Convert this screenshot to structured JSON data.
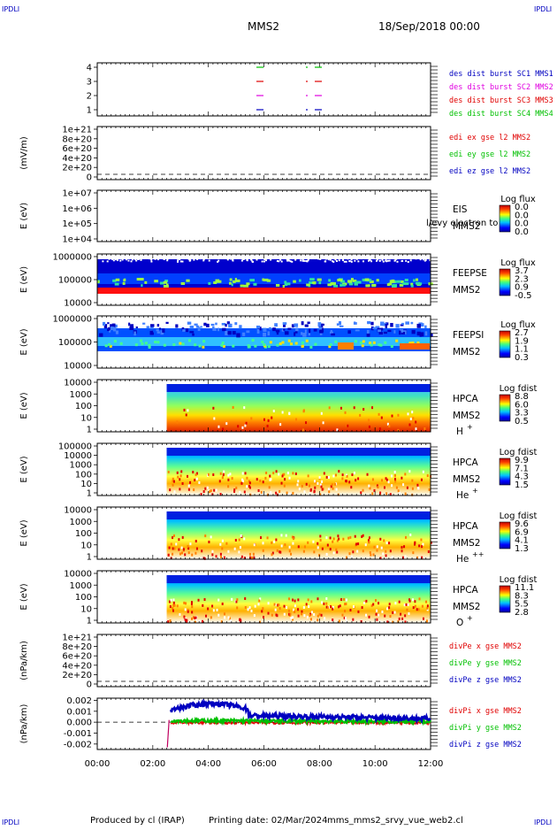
{
  "header": {
    "corner": "IPDLI",
    "spacecraft": "MMS2",
    "datetime": "18/Sep/2018 00:00"
  },
  "footer": {
    "produced": "Produced by cl (IRAP)",
    "printing": "Printing date: 02/Mar/2024",
    "script": "mms_mms2_srvy_vue_web2.cl"
  },
  "time_axis": [
    "00:00",
    "02:00",
    "04:00",
    "06:00",
    "08:00",
    "10:00",
    "12:00"
  ],
  "colors": {
    "red": "#e00000",
    "green": "#00c000",
    "blue": "#0000c0",
    "magenta": "#e000e0"
  },
  "chart_data": [
    {
      "id": "burst",
      "type": "line",
      "yticks": [
        "4",
        "3",
        "2",
        "1"
      ],
      "series": [
        {
          "name": "des dist burst SC1 MMS1",
          "color": "#0000c0"
        },
        {
          "name": "des dist burst SC2 MMS2",
          "color": "#e000e0"
        },
        {
          "name": "des dist burst SC3 MMS3",
          "color": "#e00000"
        },
        {
          "name": "des dist burst SC4 MMS4",
          "color": "#00c000"
        }
      ]
    },
    {
      "id": "edi",
      "type": "line",
      "ylabel": "(mV/m)",
      "yticks": [
        "1e+21",
        "8e+20",
        "6e+20",
        "4e+20",
        "2e+20",
        "0"
      ],
      "series": [
        {
          "name": "edi ex gse l2 MMS2",
          "color": "#e00000"
        },
        {
          "name": "edi ey gse l2 MMS2",
          "color": "#00c000"
        },
        {
          "name": "edi ez gse l2 MMS2",
          "color": "#0000c0"
        }
      ]
    },
    {
      "id": "eis",
      "type": "heatmap",
      "ylabel": "E (eV)",
      "yticks": [
        "1e+07",
        "1e+06",
        "1e+05",
        "1e+04"
      ],
      "label1": "EIS",
      "label2": "MMS2",
      "overlay": "l/evy electron to",
      "cbar_title": "Log flux",
      "cbar_ticks": [
        "0.0",
        "0.0",
        "0.0",
        "0.0"
      ]
    },
    {
      "id": "feepse",
      "type": "heatmap",
      "ylabel": "E (eV)",
      "yticks": [
        "1000000",
        "100000",
        "10000"
      ],
      "label1": "FEEPSE",
      "label2": "MMS2",
      "cbar_title": "Log flux",
      "cbar_ticks": [
        "3.7",
        "2.3",
        "0.9",
        "-0.5"
      ]
    },
    {
      "id": "feepsi",
      "type": "heatmap",
      "ylabel": "E (eV)",
      "yticks": [
        "1000000",
        "100000",
        "10000"
      ],
      "label1": "FEEPSI",
      "label2": "MMS2",
      "cbar_title": "Log flux",
      "cbar_ticks": [
        "2.7",
        "1.9",
        "1.1",
        "0.3"
      ]
    },
    {
      "id": "hpca_h",
      "type": "heatmap",
      "ylabel": "E (eV)",
      "yticks": [
        "10000",
        "1000",
        "100",
        "10",
        "1"
      ],
      "label1": "HPCA",
      "label2": "MMS2",
      "species": "H",
      "charge": "+",
      "cbar_title": "Log fdist",
      "cbar_ticks": [
        "8.8",
        "6.0",
        "3.3",
        "0.5"
      ]
    },
    {
      "id": "hpca_he1",
      "type": "heatmap",
      "ylabel": "E (eV)",
      "yticks": [
        "100000",
        "10000",
        "1000",
        "100",
        "10",
        "1"
      ],
      "label1": "HPCA",
      "label2": "MMS2",
      "species": "He",
      "charge": "+",
      "cbar_title": "Log fdist",
      "cbar_ticks": [
        "9.9",
        "7.1",
        "4.3",
        "1.5"
      ]
    },
    {
      "id": "hpca_he2",
      "type": "heatmap",
      "ylabel": "E (eV)",
      "yticks": [
        "10000",
        "1000",
        "100",
        "10",
        "1"
      ],
      "label1": "HPCA",
      "label2": "MMS2",
      "species": "He",
      "charge": "++",
      "cbar_title": "Log fdist",
      "cbar_ticks": [
        "9.6",
        "6.9",
        "4.1",
        "1.3"
      ]
    },
    {
      "id": "hpca_o",
      "type": "heatmap",
      "ylabel": "E (eV)",
      "yticks": [
        "10000",
        "1000",
        "100",
        "10",
        "1"
      ],
      "label1": "HPCA",
      "label2": "MMS2",
      "species": "O",
      "charge": "+",
      "cbar_title": "Log fdist",
      "cbar_ticks": [
        "11.1",
        "8.3",
        "5.5",
        "2.8"
      ]
    },
    {
      "id": "divpe",
      "type": "line",
      "ylabel": "(nPa/km)",
      "yticks": [
        "1e+21",
        "8e+20",
        "6e+20",
        "4e+20",
        "2e+20",
        "0"
      ],
      "series": [
        {
          "name": "divPe x gse MMS2",
          "color": "#e00000"
        },
        {
          "name": "divPe y gse MMS2",
          "color": "#00c000"
        },
        {
          "name": "divPe z gse MMS2",
          "color": "#0000c0"
        }
      ]
    },
    {
      "id": "divpi",
      "type": "line",
      "ylabel": "(nPa/km)",
      "yticks": [
        "0.002",
        "0.001",
        "0.000",
        "-0.001",
        "-0.002"
      ],
      "ylim": [
        -0.0025,
        0.0022
      ],
      "series": [
        {
          "name": "divPi x gse MMS2",
          "color": "#e00000"
        },
        {
          "name": "divPi y gse MMS2",
          "color": "#00c000"
        },
        {
          "name": "divPi z gse MMS2",
          "color": "#0000c0"
        }
      ]
    }
  ]
}
